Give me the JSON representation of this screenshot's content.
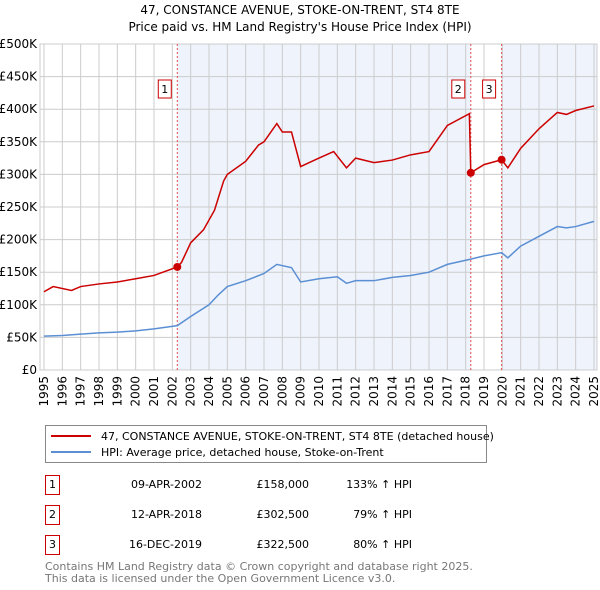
{
  "chart_data": {
    "type": "line",
    "title": "47, CONSTANCE AVENUE, STOKE-ON-TRENT, ST4 8TE",
    "subtitle": "Price paid vs. HM Land Registry's House Price Index (HPI)",
    "xlim": [
      1995,
      2025
    ],
    "ylim": [
      0,
      500000
    ],
    "yticks": [
      {
        "v": 0,
        "l": "£0"
      },
      {
        "v": 50000,
        "l": "£50K"
      },
      {
        "v": 100000,
        "l": "£100K"
      },
      {
        "v": 150000,
        "l": "£150K"
      },
      {
        "v": 200000,
        "l": "£200K"
      },
      {
        "v": 250000,
        "l": "£250K"
      },
      {
        "v": 300000,
        "l": "£300K"
      },
      {
        "v": 350000,
        "l": "£350K"
      },
      {
        "v": 400000,
        "l": "£400K"
      },
      {
        "v": 450000,
        "l": "£450K"
      },
      {
        "v": 500000,
        "l": "£500K"
      }
    ],
    "xticks": [
      "1995",
      "1996",
      "1997",
      "1998",
      "1999",
      "2000",
      "2001",
      "2002",
      "2003",
      "2004",
      "2005",
      "2006",
      "2007",
      "2008",
      "2009",
      "2010",
      "2011",
      "2012",
      "2013",
      "2014",
      "2015",
      "2016",
      "2017",
      "2018",
      "2019",
      "2020",
      "2021",
      "2022",
      "2023",
      "2024",
      "2025"
    ],
    "grid": true,
    "series": [
      {
        "name": "47, CONSTANCE AVENUE, STOKE-ON-TRENT, ST4 8TE (detached house)",
        "color": "#cc0000",
        "x": [
          1995,
          1995.5,
          1996.5,
          1997,
          1998,
          1999,
          2000,
          2001,
          2002.27,
          2002.5,
          2003,
          2003.7,
          2004.3,
          2004.8,
          2005,
          2006,
          2006.7,
          2007,
          2007.7,
          2008,
          2008.5,
          2009,
          2010,
          2010.8,
          2011.5,
          2012,
          2013,
          2014,
          2015,
          2016,
          2016.5,
          2017,
          2018.2,
          2018.28,
          2019,
          2019.96,
          2020.3,
          2021,
          2022,
          2023,
          2023.5,
          2024,
          2025
        ],
        "y": [
          120000,
          128000,
          122000,
          128000,
          132000,
          135000,
          140000,
          145000,
          158000,
          165000,
          195000,
          215000,
          245000,
          290000,
          300000,
          320000,
          345000,
          350000,
          378000,
          365000,
          365000,
          312000,
          325000,
          335000,
          310000,
          325000,
          318000,
          322000,
          330000,
          335000,
          355000,
          375000,
          393000,
          302500,
          315000,
          322500,
          310000,
          340000,
          370000,
          395000,
          392000,
          398000,
          405000
        ]
      },
      {
        "name": "HPI: Average price, detached house, Stoke-on-Trent",
        "color": "#5b8fd4",
        "x": [
          1995,
          1996,
          1997,
          1998,
          1999,
          2000,
          2001,
          2002.27,
          2003,
          2004,
          2004.5,
          2005,
          2006,
          2007,
          2007.7,
          2008.5,
          2009,
          2010,
          2011,
          2011.5,
          2012,
          2013,
          2014,
          2015,
          2016,
          2017,
          2018.28,
          2019,
          2019.96,
          2020.3,
          2021,
          2022,
          2023,
          2023.5,
          2024,
          2025
        ],
        "y": [
          52000,
          53000,
          55000,
          57000,
          58000,
          60000,
          63000,
          68000,
          82000,
          100000,
          115000,
          128000,
          137000,
          148000,
          162000,
          157000,
          135000,
          140000,
          143000,
          133000,
          137000,
          137000,
          142000,
          145000,
          150000,
          162000,
          170000,
          175000,
          180000,
          172000,
          190000,
          205000,
          220000,
          218000,
          220000,
          228000
        ]
      }
    ],
    "sales": [
      {
        "label": "1",
        "x": 2002.27,
        "price": 158000,
        "date": "09-APR-2002",
        "price_text": "£158,000",
        "hpi_text": "133% ↑ HPI"
      },
      {
        "label": "2",
        "x": 2018.28,
        "price": 302500,
        "date": "12-APR-2018",
        "price_text": "£302,500",
        "hpi_text": "79% ↑ HPI"
      },
      {
        "label": "3",
        "x": 2019.96,
        "price": 322500,
        "date": "16-DEC-2019",
        "price_text": "£322,500",
        "hpi_text": "80% ↑ HPI"
      }
    ],
    "legend_placement": "below"
  },
  "footer": {
    "line1": "Contains HM Land Registry data © Crown copyright and database right 2025.",
    "line2": "This data is licensed under the Open Government Licence v3.0."
  }
}
